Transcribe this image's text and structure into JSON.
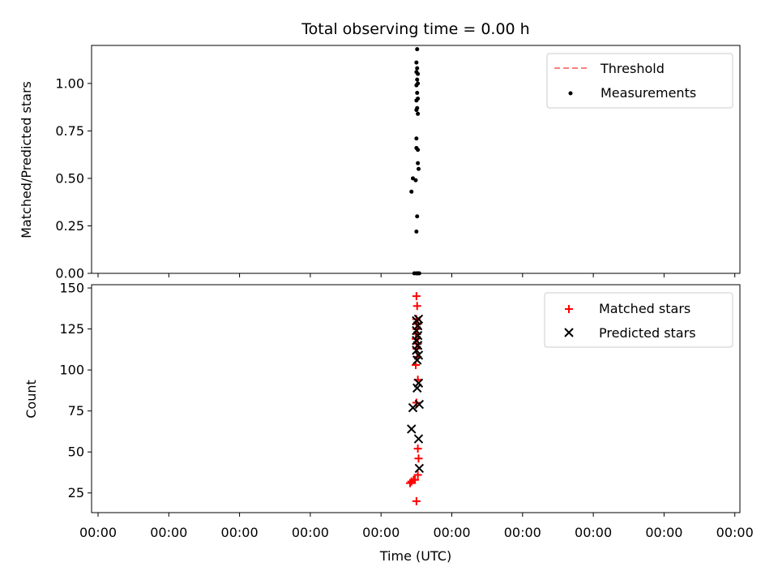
{
  "chart_data": {
    "title": "Total observing time = 0.00 h",
    "xlabel": "Time (UTC)",
    "x_tick_labels": [
      "00:00",
      "00:00",
      "00:00",
      "00:00",
      "00:00",
      "00:00",
      "00:00",
      "00:00",
      "00:00",
      "00:00"
    ],
    "panels": [
      {
        "type": "scatter",
        "ylabel": "Matched/Predicted stars",
        "ylim": [
          0,
          1.2
        ],
        "yticks": [
          0.0,
          0.25,
          0.5,
          0.75,
          1.0
        ],
        "y_tick_labels": [
          "0.00",
          "0.25",
          "0.50",
          "0.75",
          "1.00"
        ],
        "grid": false,
        "legend_position": "top-right",
        "series": [
          {
            "name": "Threshold",
            "kind": "dashed-line",
            "color": "#ff7f7f",
            "values": []
          },
          {
            "name": "Measurements",
            "kind": "dot",
            "color": "#000000",
            "points": [
              [
                4.43,
                0.43
              ],
              [
                4.45,
                0.5
              ],
              [
                4.49,
                0.49
              ],
              [
                4.47,
                0.0
              ],
              [
                4.5,
                0.0
              ],
              [
                4.52,
                0.0
              ],
              [
                4.54,
                0.0
              ],
              [
                4.5,
                0.22
              ],
              [
                4.51,
                0.3
              ],
              [
                4.53,
                0.55
              ],
              [
                4.52,
                0.58
              ],
              [
                4.5,
                0.66
              ],
              [
                4.52,
                0.65
              ],
              [
                4.5,
                0.71
              ],
              [
                4.52,
                0.84
              ],
              [
                4.5,
                0.86
              ],
              [
                4.51,
                0.87
              ],
              [
                4.5,
                0.91
              ],
              [
                4.52,
                0.92
              ],
              [
                4.51,
                0.95
              ],
              [
                4.5,
                0.99
              ],
              [
                4.52,
                1.0
              ],
              [
                4.51,
                1.02
              ],
              [
                4.52,
                1.05
              ],
              [
                4.5,
                1.06
              ],
              [
                4.51,
                1.08
              ],
              [
                4.5,
                1.11
              ],
              [
                4.51,
                1.18
              ]
            ]
          }
        ]
      },
      {
        "type": "scatter",
        "ylabel": "Count",
        "ylim": [
          13,
          152
        ],
        "yticks": [
          25,
          50,
          75,
          100,
          125,
          150
        ],
        "y_tick_labels": [
          "25",
          "50",
          "75",
          "100",
          "125",
          "150"
        ],
        "grid": false,
        "legend_position": "top-right",
        "series": [
          {
            "name": "Matched stars",
            "kind": "plus",
            "color": "#ff0000",
            "points": [
              [
                4.41,
                31
              ],
              [
                4.43,
                32
              ],
              [
                4.46,
                33
              ],
              [
                4.48,
                33
              ],
              [
                4.5,
                20
              ],
              [
                4.52,
                36
              ],
              [
                4.53,
                46
              ],
              [
                4.52,
                52
              ],
              [
                4.5,
                80
              ],
              [
                4.52,
                94
              ],
              [
                4.49,
                103
              ],
              [
                4.51,
                108
              ],
              [
                4.5,
                113
              ],
              [
                4.52,
                116
              ],
              [
                4.49,
                119
              ],
              [
                4.51,
                122
              ],
              [
                4.5,
                125
              ],
              [
                4.52,
                128
              ],
              [
                4.5,
                131
              ],
              [
                4.51,
                139
              ],
              [
                4.5,
                145
              ]
            ]
          },
          {
            "name": "Predicted stars",
            "kind": "x",
            "color": "#000000",
            "points": [
              [
                4.43,
                64
              ],
              [
                4.45,
                77
              ],
              [
                4.53,
                58
              ],
              [
                4.54,
                40
              ],
              [
                4.54,
                79
              ],
              [
                4.51,
                89
              ],
              [
                4.53,
                92
              ],
              [
                4.51,
                106
              ],
              [
                4.53,
                109
              ],
              [
                4.5,
                112
              ],
              [
                4.52,
                115
              ],
              [
                4.5,
                118
              ],
              [
                4.52,
                121
              ],
              [
                4.5,
                124
              ],
              [
                4.52,
                127
              ],
              [
                4.5,
                130
              ],
              [
                4.53,
                131
              ]
            ]
          }
        ]
      }
    ]
  }
}
